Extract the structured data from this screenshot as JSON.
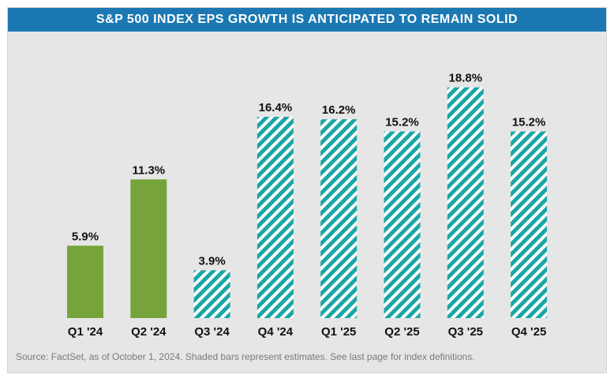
{
  "title": "S&P 500 INDEX EPS GROWTH IS ANTICIPATED TO REMAIN SOLID",
  "source_note": "Source: FactSet, as of October 1, 2024. Shaded bars represent estimates. See last page for index definitions.",
  "colors": {
    "title_bg": "#1c78b2",
    "actual": "#76a43b",
    "estimate": "#1aa6a6",
    "background": "#e6e6e6"
  },
  "chart_data": {
    "type": "bar",
    "title": "S&P 500 INDEX EPS GROWTH IS ANTICIPATED TO REMAIN SOLID",
    "categories": [
      "Q1 '24",
      "Q2 '24",
      "Q3 '24",
      "Q4 '24",
      "Q1 '25",
      "Q2 '25",
      "Q3 '25",
      "Q4 '25"
    ],
    "values": [
      5.9,
      11.3,
      3.9,
      16.4,
      16.2,
      15.2,
      18.8,
      15.2
    ],
    "data_labels": [
      "5.9%",
      "11.3%",
      "3.9%",
      "16.4%",
      "16.2%",
      "15.2%",
      "18.8%",
      "15.2%"
    ],
    "estimate": [
      false,
      false,
      true,
      true,
      true,
      true,
      true,
      true
    ],
    "ylim": [
      0,
      20
    ],
    "grid": false,
    "xlabel": "",
    "ylabel": ""
  }
}
